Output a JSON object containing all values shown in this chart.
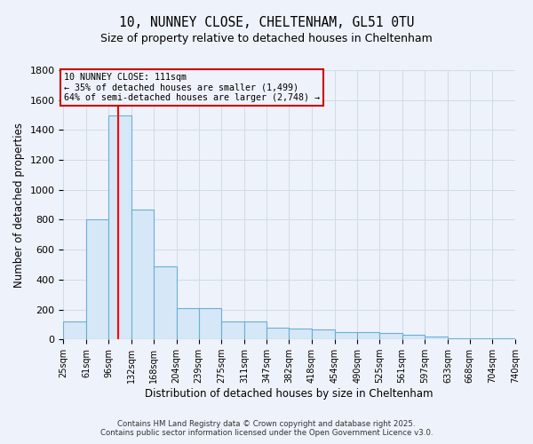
{
  "title_line1": "10, NUNNEY CLOSE, CHELTENHAM, GL51 0TU",
  "title_line2": "Size of property relative to detached houses in Cheltenham",
  "xlabel": "Distribution of detached houses by size in Cheltenham",
  "ylabel": "Number of detached properties",
  "bin_edges": [
    25,
    61,
    96,
    132,
    168,
    204,
    239,
    275,
    311,
    347,
    382,
    418,
    454,
    490,
    525,
    561,
    597,
    633,
    668,
    704,
    740
  ],
  "bar_heights": [
    120,
    800,
    1500,
    870,
    490,
    210,
    210,
    120,
    120,
    80,
    70,
    65,
    50,
    50,
    40,
    30,
    20,
    10,
    5,
    5
  ],
  "bar_facecolor": "#d6e8f7",
  "bar_edgecolor": "#6aaed6",
  "grid_color": "#d0dcea",
  "background_color": "#eef2fa",
  "red_line_x": 111,
  "ylim": [
    0,
    1800
  ],
  "yticks": [
    0,
    200,
    400,
    600,
    800,
    1000,
    1200,
    1400,
    1600,
    1800
  ],
  "annotation_title": "10 NUNNEY CLOSE: 111sqm",
  "annotation_line1": "← 35% of detached houses are smaller (1,499)",
  "annotation_line2": "64% of semi-detached houses are larger (2,748) →",
  "annotation_box_edgecolor": "#cc0000",
  "footnote1": "Contains HM Land Registry data © Crown copyright and database right 2025.",
  "footnote2": "Contains public sector information licensed under the Open Government Licence v3.0."
}
